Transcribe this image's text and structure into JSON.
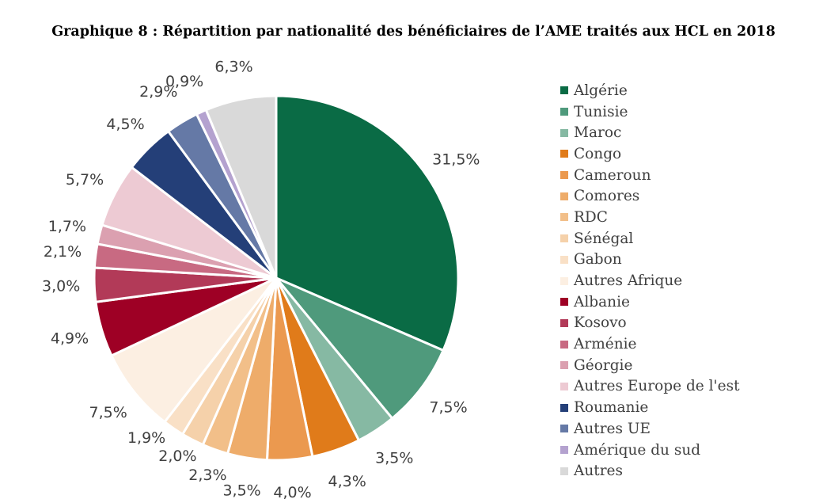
{
  "chart_data": {
    "type": "pie",
    "title": "Graphique 8 : Répartition par nationalité des bénéficiaires de l’AME traités aux HCL en 2018",
    "legend_position": "right",
    "slices": [
      {
        "name": "Algérie",
        "value": 31.5,
        "label": "31,5%",
        "color": "#0a6b45"
      },
      {
        "name": "Tunisie",
        "value": 7.5,
        "label": "7,5%",
        "color": "#4f9a7c"
      },
      {
        "name": "Maroc",
        "value": 3.5,
        "label": "3,5%",
        "color": "#86b9a3"
      },
      {
        "name": "Congo",
        "value": 4.3,
        "label": "4,3%",
        "color": "#e07b1a"
      },
      {
        "name": "Cameroun",
        "value": 4.0,
        "label": "4,0%",
        "color": "#eb994f"
      },
      {
        "name": "Comores",
        "value": 3.5,
        "label": "3,5%",
        "color": "#eeac6a"
      },
      {
        "name": "RDC",
        "value": 2.3,
        "label": "2,3%",
        "color": "#f2bf89"
      },
      {
        "name": "Sénégal",
        "value": 2.0,
        "label": "2,0%",
        "color": "#f5d1aa"
      },
      {
        "name": "Gabon",
        "value": 1.9,
        "label": "1,9%",
        "color": "#f9e0c6"
      },
      {
        "name": "Autres Afrique",
        "value": 7.5,
        "label": "7,5%",
        "color": "#fcefe2"
      },
      {
        "name": "Albanie",
        "value": 4.9,
        "label": "4,9%",
        "color": "#9e0025"
      },
      {
        "name": "Kosovo",
        "value": 3.0,
        "label": "3,0%",
        "color": "#b23a58"
      },
      {
        "name": "Arménie",
        "value": 2.1,
        "label": "2,1%",
        "color": "#c86a82"
      },
      {
        "name": "Géorgie",
        "value": 1.7,
        "label": "1,7%",
        "color": "#dba0b0"
      },
      {
        "name": "Autres Europe de l'est",
        "value": 5.7,
        "label": "5,7%",
        "color": "#edcad3"
      },
      {
        "name": "Roumanie",
        "value": 4.5,
        "label": "4,5%",
        "color": "#243f78"
      },
      {
        "name": "Autres UE",
        "value": 2.9,
        "label": "2,9%",
        "color": "#6579a6"
      },
      {
        "name": "Amérique du sud",
        "value": 0.9,
        "label": "0,9%",
        "color": "#b4a2cf"
      },
      {
        "name": "Autres",
        "value": 6.3,
        "label": "6,3%",
        "color": "#d9d9d9"
      }
    ]
  }
}
